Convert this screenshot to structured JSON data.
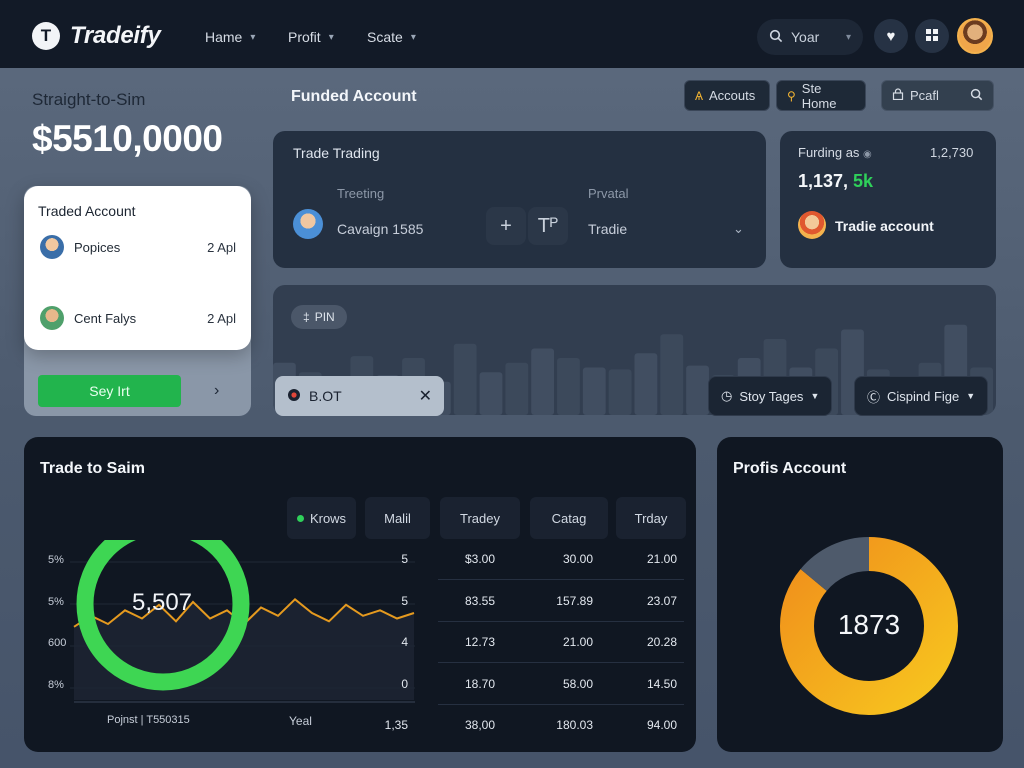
{
  "brand": {
    "logo_letter": "T",
    "name": "Tradeify"
  },
  "nav": [
    {
      "label": "Hame"
    },
    {
      "label": "Profit"
    },
    {
      "label": "Scate"
    }
  ],
  "search": {
    "label": "Yoar"
  },
  "hero": {
    "subtitle": "Straight-to-Sim",
    "amount": "$5510,0000"
  },
  "traded_account": {
    "title": "Traded Account",
    "rows": [
      {
        "name": "Popices",
        "date": "2 Apl"
      },
      {
        "name": "Cent Falys",
        "date": "2 Apl"
      }
    ],
    "button": "Sey Irt"
  },
  "funded": {
    "title": "Funded Account",
    "chips": [
      {
        "label": "Accouts"
      },
      {
        "label": "Ste Home"
      },
      {
        "label": "Pcafl"
      }
    ]
  },
  "trade_trading": {
    "title": "Trade Trading",
    "field1_label": "Treeting",
    "field1_value": "Cavaign 1585",
    "field2_label": "Prvatal",
    "field2_value": "Tradie",
    "btn_plus": "+",
    "btn_t": "Tᴾ"
  },
  "funding_card": {
    "label": "Furding as",
    "number": "1,2,730",
    "big_prefix": "1,137, ",
    "big_green": "5k",
    "account": "Tradie account"
  },
  "strip": {
    "pin": "PIN",
    "bot": "B.OT",
    "dropdown1": "Stoy Tages",
    "dropdown2": "Cispind Fige",
    "bars": [
      0.55,
      0.45,
      0.3,
      0.62,
      0.42,
      0.6,
      0.35,
      0.75,
      0.45,
      0.55,
      0.7,
      0.6,
      0.5,
      0.48,
      0.65,
      0.85,
      0.52,
      0.42,
      0.6,
      0.8,
      0.5,
      0.7,
      0.9,
      0.48,
      0.4,
      0.55,
      0.95,
      0.5
    ]
  },
  "trade_to_sim": {
    "title": "Trade to Saim",
    "headers": [
      "Krows",
      "Malil",
      "Tradey",
      "Catag",
      "Trday"
    ],
    "y_labels": [
      "5%",
      "5%",
      "600",
      "8%"
    ],
    "x_label_left": "Pojnst | T550315",
    "x_label_mid": "Yeal",
    "x_label_right": "1,35",
    "ring_value": "5,507",
    "line_series": [
      0.15,
      0.35,
      0.2,
      0.45,
      0.3,
      0.55,
      0.25,
      0.6,
      0.3,
      0.45,
      0.2,
      0.5,
      0.35,
      0.65,
      0.4,
      0.25,
      0.55,
      0.35,
      0.45,
      0.3,
      0.4
    ],
    "line_color": "#e59a1f",
    "ring_color": "#3ed653",
    "rows": [
      {
        "v": "5",
        "c1": "$3.00",
        "c2": "30.00",
        "c3": "21.00"
      },
      {
        "v": "5",
        "c1": "83.55",
        "c2": "157.89",
        "c3": "23.07"
      },
      {
        "v": "4",
        "c1": "12.73",
        "c2": "21.00",
        "c3": "20.28"
      },
      {
        "v": "0",
        "c1": "18.70",
        "c2": "58.00",
        "c3": "14.50"
      },
      {
        "v": "1,35",
        "c1": "38,00",
        "c2": "180.03",
        "c3": "94.00"
      }
    ]
  },
  "profit_account": {
    "title": "Profis Account",
    "total": "1873",
    "segments": [
      {
        "value": 0.86,
        "color": "#f29a1c"
      },
      {
        "value": 0.14,
        "color": "#4e5a6b"
      }
    ]
  }
}
